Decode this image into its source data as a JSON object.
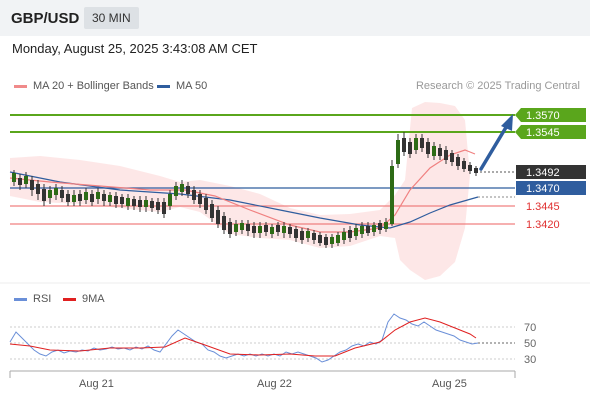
{
  "header": {
    "pair": "GBP/USD",
    "timeframe": "30 MIN",
    "datetime": "Monday, August 25, 2025 3:43:08 AM CET"
  },
  "legend": {
    "main_items": [
      {
        "label": "MA 20 + Bollinger Bands",
        "color": "#f08a8a"
      },
      {
        "label": "MA 50",
        "color": "#2f5d9e"
      }
    ],
    "rsi_items": [
      {
        "label": "RSI",
        "color": "#6a8fd8"
      },
      {
        "label": "9MA",
        "color": "#e02020"
      }
    ],
    "credit": "Research © 2025 Trading Central"
  },
  "levels": [
    {
      "label": "1.3570",
      "value": 1.357,
      "color": "#5aa61c",
      "style": "green-line"
    },
    {
      "label": "1.3545",
      "value": 1.3545,
      "color": "#5aa61c",
      "style": "green-line"
    },
    {
      "label": "1.3492",
      "value": 1.3492,
      "color": "#333333",
      "style": "current-price"
    },
    {
      "label": "1.3470",
      "value": 1.347,
      "color": "#2f5d9e",
      "style": "pivot"
    },
    {
      "label": "1.3445",
      "value": 1.3445,
      "color": "#e03030",
      "style": "red-line"
    },
    {
      "label": "1.3420",
      "value": 1.342,
      "color": "#e03030",
      "style": "red-line"
    }
  ],
  "rsi_axis": [
    "70",
    "50",
    "30"
  ],
  "x_axis": [
    "Aug 21",
    "Aug 22",
    "Aug 25"
  ]
}
